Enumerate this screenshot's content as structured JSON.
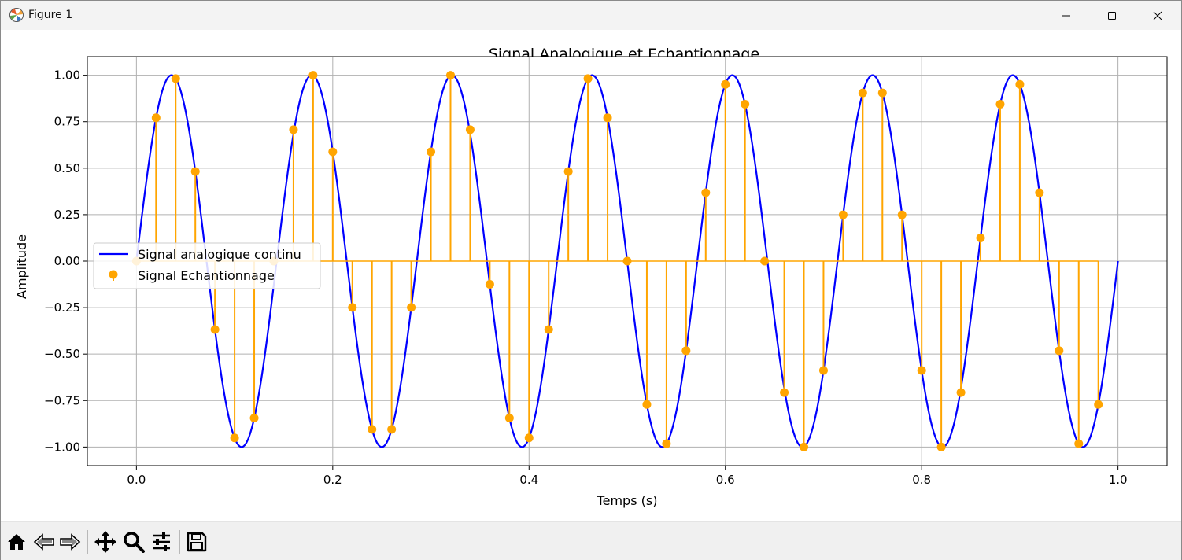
{
  "window": {
    "title": "Figure 1",
    "buttons": [
      "minimize",
      "maximize",
      "close"
    ]
  },
  "toolbar": {
    "buttons": [
      {
        "name": "home-button",
        "icon": "home-icon"
      },
      {
        "name": "back-button",
        "icon": "back-arrow-icon"
      },
      {
        "name": "forward-button",
        "icon": "forward-arrow-icon"
      },
      {
        "name": "pan-button",
        "icon": "pan-move-icon"
      },
      {
        "name": "zoom-button",
        "icon": "zoom-magnifier-icon"
      },
      {
        "name": "configure-subplots-button",
        "icon": "sliders-icon"
      },
      {
        "name": "save-button",
        "icon": "save-floppy-icon"
      }
    ]
  },
  "chart_data": {
    "type": "line",
    "title": "Signal Analogique et Echantionnage",
    "xlabel": "Temps (s)",
    "ylabel": "Amplitude",
    "xlim": [
      -0.05,
      1.05
    ],
    "ylim": [
      -1.1,
      1.1
    ],
    "xticks": [
      0.0,
      0.2,
      0.4,
      0.6,
      0.8,
      1.0
    ],
    "xtick_labels": [
      "0.0",
      "0.2",
      "0.4",
      "0.6",
      "0.8",
      "1.0"
    ],
    "yticks": [
      -1.0,
      -0.75,
      -0.5,
      -0.25,
      0.0,
      0.25,
      0.5,
      0.75,
      1.0
    ],
    "ytick_labels": [
      "−1.00",
      "−0.75",
      "−0.50",
      "−0.25",
      "0.00",
      "0.25",
      "0.50",
      "0.75",
      "1.00"
    ],
    "grid": true,
    "legend_position": "center-left",
    "series": [
      {
        "name": "Signal analogique continu",
        "kind": "line",
        "color": "#0000ff",
        "function": "sin(2*pi*7*t)",
        "t_range": [
          0.0,
          1.0
        ]
      },
      {
        "name": "Signal Echantionnage",
        "kind": "stem",
        "color": "#ffa500",
        "t": [
          0.0,
          0.02,
          0.04,
          0.06,
          0.08,
          0.1,
          0.12,
          0.14,
          0.16,
          0.18,
          0.2,
          0.22,
          0.24,
          0.26,
          0.28,
          0.3,
          0.32,
          0.34,
          0.36,
          0.38,
          0.4,
          0.42,
          0.44,
          0.46,
          0.48,
          0.5,
          0.52,
          0.54,
          0.56,
          0.58,
          0.6,
          0.62,
          0.64,
          0.66,
          0.68,
          0.7,
          0.72,
          0.74,
          0.76,
          0.78,
          0.8,
          0.82,
          0.84,
          0.86,
          0.88,
          0.9,
          0.92,
          0.94,
          0.96,
          0.98
        ],
        "values": [
          0.0,
          0.771,
          0.982,
          0.482,
          -0.368,
          -0.951,
          -0.844,
          0.0,
          0.707,
          1.0,
          0.588,
          -0.249,
          -0.905,
          -0.905,
          -0.249,
          0.588,
          1.0,
          0.707,
          -0.125,
          -0.844,
          -0.951,
          -0.368,
          0.482,
          0.982,
          0.771,
          0.0,
          -0.771,
          -0.982,
          -0.482,
          0.368,
          0.951,
          0.844,
          0.0,
          -0.707,
          -1.0,
          -0.588,
          0.249,
          0.905,
          0.905,
          0.249,
          -0.588,
          -1.0,
          -0.707,
          0.125,
          0.844,
          0.951,
          0.368,
          -0.482,
          -0.982,
          -0.771
        ]
      }
    ]
  }
}
